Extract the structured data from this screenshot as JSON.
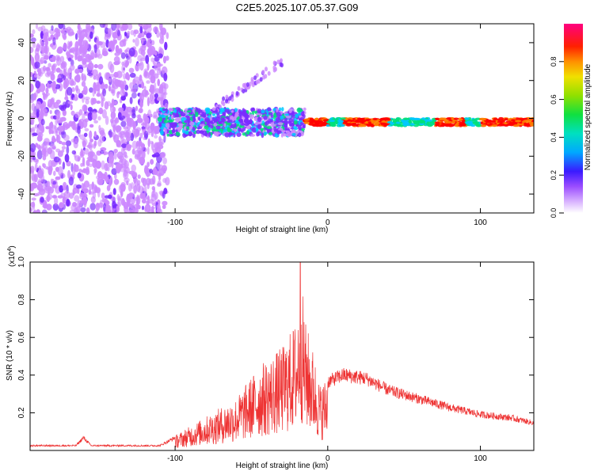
{
  "figure_title": "C2E5.2025.107.05.37.G09",
  "chart_data": [
    {
      "type": "heatmap",
      "title": "C2E5.2025.107.05.37.G09",
      "xlabel": "Height of straight line (km)",
      "ylabel": "Frequency (Hz)",
      "xlim": [
        -195,
        135
      ],
      "ylim": [
        -50,
        50
      ],
      "xticks": [
        -100,
        0,
        100
      ],
      "xtick_labels": [
        "-100",
        "0",
        "100"
      ],
      "yticks": [
        -40,
        -20,
        0,
        20,
        40
      ],
      "ytick_labels": [
        "-40",
        "-20",
        "0",
        "20",
        "40"
      ],
      "colorbar": {
        "label": "Normalized spectral amplitude",
        "range": [
          0,
          1
        ],
        "ticks": [
          0.0,
          0.2,
          0.4,
          0.6,
          0.8
        ],
        "tick_labels": [
          "0.0",
          "0.2",
          "0.4",
          "0.6",
          "0.8"
        ],
        "colormap": [
          "#ffffff",
          "#cc88ff",
          "#7a2cff",
          "#1a1aff",
          "#00c8ff",
          "#00e07a",
          "#49e000",
          "#f0e000",
          "#ff8000",
          "#ff0000",
          "#ff007a"
        ]
      },
      "features": {
        "noise_region_x": [
          -195,
          -105
        ],
        "dominant_line_freq_hz": -2,
        "dominant_line_x": [
          -105,
          135
        ],
        "strong_segments_x": [
          [
            -20,
            0
          ],
          [
            10,
            40
          ],
          [
            70,
            90
          ],
          [
            100,
            135
          ]
        ],
        "diagonal_branch": {
          "x": [
            -75,
            -30
          ],
          "freq": [
            5,
            30
          ]
        }
      }
    },
    {
      "type": "line",
      "xlabel": "Height of straight line (km)",
      "ylabel": "SNR (10 * v/v)",
      "scale_label": "(x10",
      "scale_exponent": "4",
      "scale_suffix": ")",
      "xlim": [
        -195,
        135
      ],
      "ylim": [
        0,
        1.0
      ],
      "xticks": [
        -100,
        0,
        100
      ],
      "xtick_labels": [
        "-100",
        "0",
        "100"
      ],
      "yticks": [
        0.2,
        0.4,
        0.6,
        0.8,
        1.0
      ],
      "ytick_labels": [
        "0.2",
        "0.4",
        "0.6",
        "0.8",
        "1.0"
      ],
      "series": [
        {
          "name": "SNR",
          "color": "#ee3333",
          "envelope_x": [
            -195,
            -165,
            -160,
            -155,
            -110,
            -100,
            -80,
            -60,
            -45,
            -30,
            -20,
            -18,
            -15,
            -10,
            -5,
            0,
            10,
            25,
            40,
            60,
            80,
            100,
            120,
            135
          ],
          "envelope_y": [
            0.03,
            0.03,
            0.08,
            0.03,
            0.03,
            0.08,
            0.18,
            0.28,
            0.45,
            0.55,
            0.7,
            1.0,
            0.7,
            0.55,
            0.35,
            0.4,
            0.44,
            0.42,
            0.35,
            0.3,
            0.25,
            0.21,
            0.19,
            0.16
          ]
        }
      ]
    }
  ]
}
